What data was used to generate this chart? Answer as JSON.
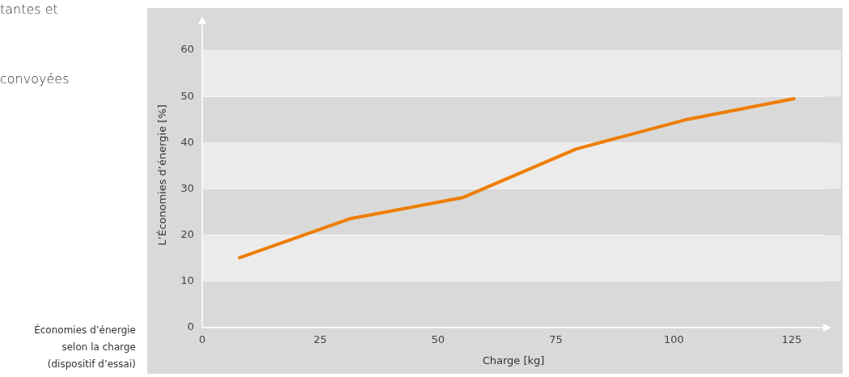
{
  "chart_data": {
    "type": "line",
    "xlabel": "Charge [kg]",
    "ylabel": "L’Économies d’énergie [%]",
    "annotations": [
      "tantes et",
      "convoyées",
      "Économies d’énergie selon la charge (dispositif d’essai)"
    ],
    "series": [
      {
        "color": "#ee7d00",
        "x": [
          7.9,
          31.2,
          55.2,
          79.2,
          102.3,
          125.5
        ],
        "values": [
          15.1,
          23.5,
          28.1,
          38.6,
          44.9,
          49.5
        ]
      }
    ],
    "xlim": [
      0,
      132
    ],
    "xticks": [
      0,
      25,
      50,
      75,
      100,
      125
    ],
    "ylim": [
      0,
      66
    ],
    "yticks": [
      0,
      10,
      20,
      30,
      40,
      50,
      60
    ],
    "grid": "y",
    "legend": false,
    "marker": "none",
    "line_style": "solid"
  }
}
